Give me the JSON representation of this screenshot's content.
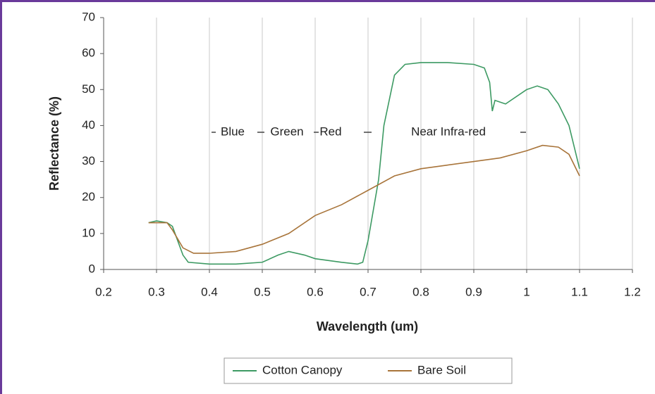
{
  "chart_data": {
    "type": "line",
    "x_label": "Wavelength (um)",
    "y_label": "Reflectance (%)",
    "xlim": [
      0.2,
      1.2
    ],
    "xticks": [
      0.2,
      0.3,
      0.4,
      0.5,
      0.6,
      0.7,
      0.8,
      0.9,
      1,
      1.1,
      1.2
    ],
    "ylim": [
      0,
      70
    ],
    "yticks": [
      0,
      10,
      20,
      30,
      40,
      50,
      60,
      70
    ],
    "grid": true,
    "legend": "bottom",
    "annotations": [
      {
        "text": "Blue",
        "color": "#3a9cc4"
      },
      {
        "text": "Green",
        "color": "#3a9a5a"
      },
      {
        "text": "Red",
        "color": "#b04545"
      },
      {
        "text": "Near Infra-red",
        "color": "#333333"
      }
    ],
    "series": [
      {
        "name": "Cotton Canopy",
        "color": "#3d9a63",
        "x": [
          0.285,
          0.3,
          0.32,
          0.33,
          0.34,
          0.35,
          0.36,
          0.4,
          0.45,
          0.5,
          0.53,
          0.55,
          0.58,
          0.6,
          0.65,
          0.68,
          0.69,
          0.7,
          0.72,
          0.73,
          0.75,
          0.77,
          0.8,
          0.85,
          0.9,
          0.92,
          0.93,
          0.935,
          0.94,
          0.96,
          1.0,
          1.02,
          1.04,
          1.06,
          1.08,
          1.1
        ],
        "values": [
          13,
          13.5,
          13,
          12,
          8,
          4,
          2,
          1.5,
          1.5,
          2,
          4,
          5,
          4,
          3,
          2,
          1.5,
          2,
          8,
          25,
          40,
          54,
          57,
          57.5,
          57.5,
          57,
          56,
          52,
          44,
          47,
          46,
          50,
          51,
          50,
          46,
          40,
          28
        ]
      },
      {
        "name": "Bare Soil",
        "color": "#a8743a",
        "x": [
          0.285,
          0.3,
          0.32,
          0.33,
          0.35,
          0.37,
          0.4,
          0.45,
          0.5,
          0.55,
          0.6,
          0.65,
          0.7,
          0.75,
          0.8,
          0.85,
          0.9,
          0.95,
          1.0,
          1.03,
          1.06,
          1.08,
          1.1
        ],
        "values": [
          13,
          13,
          13,
          11,
          6,
          4.5,
          4.5,
          5,
          7,
          10,
          15,
          18,
          22,
          26,
          28,
          29,
          30,
          31,
          33,
          34.5,
          34,
          32,
          26
        ]
      }
    ]
  }
}
